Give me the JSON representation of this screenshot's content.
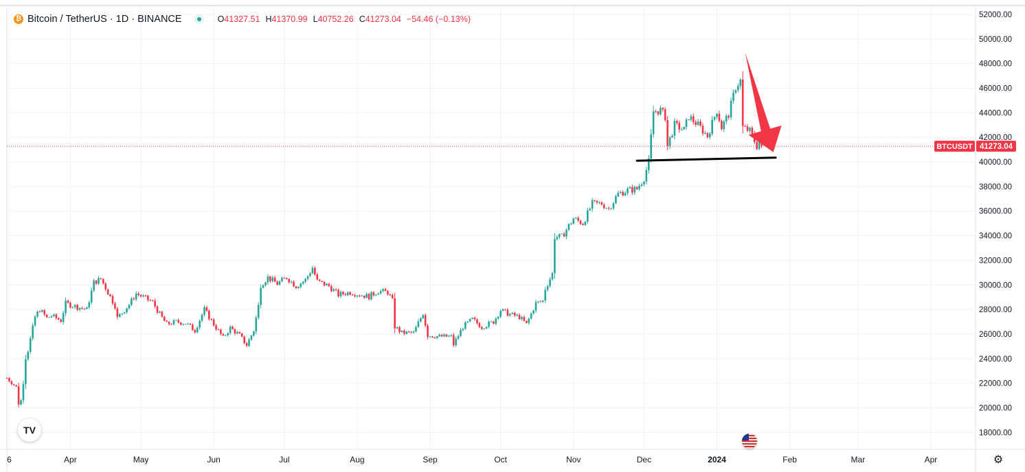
{
  "header": {
    "symbol": "Bitcoin / TetherUS · 1D · BINANCE",
    "coin_glyph": "₿",
    "ohlc": {
      "o_label": "O",
      "o_value": "41327.51",
      "h_label": "H",
      "h_value": "41370.99",
      "l_label": "L",
      "l_value": "40752.26",
      "c_label": "C",
      "c_value": "41273.04",
      "change": "−54.46 (−0.13%)"
    }
  },
  "colors": {
    "up": "#26a69a",
    "down": "#f23645",
    "grid": "#f0f3fa",
    "axis_text": "#131722",
    "price_tag": "#f23645",
    "arrow": "#f23645",
    "support": "#000000"
  },
  "price_tag": {
    "ticker": "BTCUSDT",
    "value": "41273.04"
  },
  "logo_text": "TV",
  "settings_icon": "gear-icon",
  "chart_data": {
    "type": "candlestick",
    "y_ticks": [
      "52000.00",
      "50000.00",
      "48000.00",
      "46000.00",
      "44000.00",
      "42000.00",
      "40000.00",
      "38000.00",
      "36000.00",
      "34000.00",
      "32000.00",
      "30000.00",
      "28000.00",
      "26000.00",
      "24000.00",
      "22000.00",
      "20000.00",
      "18000.00"
    ],
    "x_ticks": [
      "6",
      "Apr",
      "May",
      "Jun",
      "Jul",
      "Aug",
      "Sep",
      "Oct",
      "Nov",
      "Dec",
      "2024",
      "Feb",
      "Mar",
      "Apr"
    ],
    "x_tick_dates": [
      "2023-03-06",
      "2023-04-01",
      "2023-05-01",
      "2023-06-01",
      "2023-07-01",
      "2023-08-01",
      "2023-09-01",
      "2023-10-01",
      "2023-11-01",
      "2023-12-01",
      "2024-01-01",
      "2024-02-01",
      "2024-03-01",
      "2024-04-01"
    ],
    "x_range": [
      "2023-03-05",
      "2024-04-20"
    ],
    "ylim": [
      17000,
      52500
    ],
    "last_price": 41273.04,
    "closes": [
      {
        "d": "2023-03-05",
        "c": 22430
      },
      {
        "d": "2023-03-09",
        "c": 21700
      },
      {
        "d": "2023-03-10",
        "c": 20360
      },
      {
        "d": "2023-03-11",
        "c": 20600
      },
      {
        "d": "2023-03-12",
        "c": 22100
      },
      {
        "d": "2023-03-13",
        "c": 24100
      },
      {
        "d": "2023-03-14",
        "c": 24680
      },
      {
        "d": "2023-03-17",
        "c": 27400
      },
      {
        "d": "2023-03-19",
        "c": 28000
      },
      {
        "d": "2023-03-22",
        "c": 27300
      },
      {
        "d": "2023-03-24",
        "c": 27500
      },
      {
        "d": "2023-03-28",
        "c": 27100
      },
      {
        "d": "2023-03-30",
        "c": 28500
      },
      {
        "d": "2023-04-04",
        "c": 28200
      },
      {
        "d": "2023-04-08",
        "c": 28000
      },
      {
        "d": "2023-04-11",
        "c": 30200
      },
      {
        "d": "2023-04-14",
        "c": 30480
      },
      {
        "d": "2023-04-17",
        "c": 29400
      },
      {
        "d": "2023-04-20",
        "c": 28300
      },
      {
        "d": "2023-04-21",
        "c": 27300
      },
      {
        "d": "2023-04-26",
        "c": 28400
      },
      {
        "d": "2023-04-29",
        "c": 29300
      },
      {
        "d": "2023-05-03",
        "c": 28900
      },
      {
        "d": "2023-05-06",
        "c": 28600
      },
      {
        "d": "2023-05-09",
        "c": 27600
      },
      {
        "d": "2023-05-12",
        "c": 26800
      },
      {
        "d": "2023-05-16",
        "c": 27000
      },
      {
        "d": "2023-05-20",
        "c": 26900
      },
      {
        "d": "2023-05-24",
        "c": 26300
      },
      {
        "d": "2023-05-28",
        "c": 28000
      },
      {
        "d": "2023-06-01",
        "c": 26800
      },
      {
        "d": "2023-06-05",
        "c": 25700
      },
      {
        "d": "2023-06-08",
        "c": 26500
      },
      {
        "d": "2023-06-12",
        "c": 25900
      },
      {
        "d": "2023-06-15",
        "c": 25100
      },
      {
        "d": "2023-06-18",
        "c": 26300
      },
      {
        "d": "2023-06-20",
        "c": 28300
      },
      {
        "d": "2023-06-21",
        "c": 30000
      },
      {
        "d": "2023-06-24",
        "c": 30600
      },
      {
        "d": "2023-06-28",
        "c": 30100
      },
      {
        "d": "2023-07-02",
        "c": 30600
      },
      {
        "d": "2023-07-06",
        "c": 29900
      },
      {
        "d": "2023-07-10",
        "c": 30400
      },
      {
        "d": "2023-07-13",
        "c": 31400
      },
      {
        "d": "2023-07-15",
        "c": 30300
      },
      {
        "d": "2023-07-20",
        "c": 29900
      },
      {
        "d": "2023-07-24",
        "c": 29200
      },
      {
        "d": "2023-07-29",
        "c": 29400
      },
      {
        "d": "2023-08-02",
        "c": 29200
      },
      {
        "d": "2023-08-06",
        "c": 29050
      },
      {
        "d": "2023-08-10",
        "c": 29500
      },
      {
        "d": "2023-08-14",
        "c": 29400
      },
      {
        "d": "2023-08-16",
        "c": 28700
      },
      {
        "d": "2023-08-17",
        "c": 26600
      },
      {
        "d": "2023-08-20",
        "c": 26100
      },
      {
        "d": "2023-08-25",
        "c": 26100
      },
      {
        "d": "2023-08-29",
        "c": 27700
      },
      {
        "d": "2023-08-31",
        "c": 25900
      },
      {
        "d": "2023-09-05",
        "c": 25800
      },
      {
        "d": "2023-09-10",
        "c": 25800
      },
      {
        "d": "2023-09-11",
        "c": 25160
      },
      {
        "d": "2023-09-15",
        "c": 26600
      },
      {
        "d": "2023-09-19",
        "c": 27200
      },
      {
        "d": "2023-09-23",
        "c": 26580
      },
      {
        "d": "2023-09-28",
        "c": 27000
      },
      {
        "d": "2023-10-01",
        "c": 27950
      },
      {
        "d": "2023-10-05",
        "c": 27600
      },
      {
        "d": "2023-10-09",
        "c": 27400
      },
      {
        "d": "2023-10-12",
        "c": 26800
      },
      {
        "d": "2023-10-16",
        "c": 28500
      },
      {
        "d": "2023-10-19",
        "c": 28700
      },
      {
        "d": "2023-10-20",
        "c": 29700
      },
      {
        "d": "2023-10-23",
        "c": 30900
      },
      {
        "d": "2023-10-24",
        "c": 33900
      },
      {
        "d": "2023-10-27",
        "c": 33900
      },
      {
        "d": "2023-11-01",
        "c": 35400
      },
      {
        "d": "2023-11-05",
        "c": 35000
      },
      {
        "d": "2023-11-09",
        "c": 36600
      },
      {
        "d": "2023-11-13",
        "c": 36600
      },
      {
        "d": "2023-11-16",
        "c": 36200
      },
      {
        "d": "2023-11-20",
        "c": 37400
      },
      {
        "d": "2023-11-24",
        "c": 37700
      },
      {
        "d": "2023-11-28",
        "c": 37800
      },
      {
        "d": "2023-12-01",
        "c": 38700
      },
      {
        "d": "2023-12-03",
        "c": 40000
      },
      {
        "d": "2023-12-05",
        "c": 44100
      },
      {
        "d": "2023-12-08",
        "c": 44200
      },
      {
        "d": "2023-12-10",
        "c": 43700
      },
      {
        "d": "2023-12-11",
        "c": 41300
      },
      {
        "d": "2023-12-14",
        "c": 43000
      },
      {
        "d": "2023-12-18",
        "c": 42600
      },
      {
        "d": "2023-12-20",
        "c": 43700
      },
      {
        "d": "2023-12-24",
        "c": 43000
      },
      {
        "d": "2023-12-28",
        "c": 42100
      },
      {
        "d": "2024-01-01",
        "c": 44200
      },
      {
        "d": "2024-01-03",
        "c": 42800
      },
      {
        "d": "2024-01-06",
        "c": 43900
      },
      {
        "d": "2024-01-09",
        "c": 46100
      },
      {
        "d": "2024-01-11",
        "c": 46600
      },
      {
        "d": "2024-01-12",
        "c": 42800
      },
      {
        "d": "2024-01-15",
        "c": 42500
      },
      {
        "d": "2024-01-18",
        "c": 41300
      },
      {
        "d": "2024-01-19",
        "c": 41650
      },
      {
        "d": "2024-01-20",
        "c": 41273.04
      }
    ],
    "annotations": {
      "support_line": {
        "from": {
          "d": "2023-11-28",
          "y": 40100
        },
        "to": {
          "d": "2024-01-26",
          "y": 40350
        }
      },
      "arrow": {
        "from": {
          "d": "2024-01-13",
          "y": 48900
        },
        "to": {
          "d": "2024-01-25",
          "y": 40800
        }
      }
    }
  }
}
